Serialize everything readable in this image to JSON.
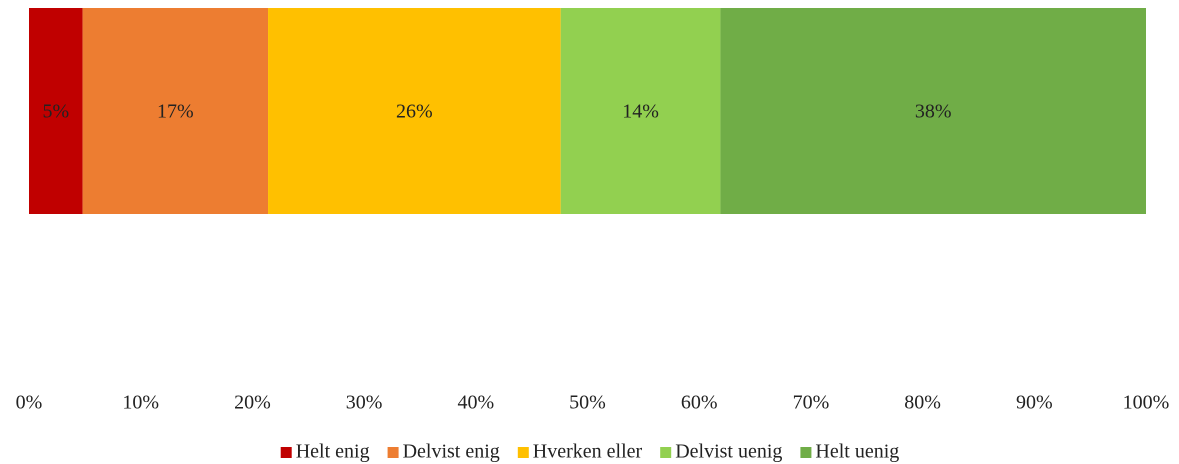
{
  "chart_data": {
    "type": "bar",
    "orientation": "horizontal",
    "stacked": true,
    "categories": [
      null
    ],
    "series": [
      {
        "name": "Helt enig",
        "color": "#c00000",
        "values": [
          4.8
        ],
        "value_labels": [
          "5%"
        ]
      },
      {
        "name": "Delvist enig",
        "color": "#ed7d31",
        "values": [
          16.6
        ],
        "value_labels": [
          "17%"
        ]
      },
      {
        "name": "Hverken eller",
        "color": "#ffc000",
        "values": [
          26.2
        ],
        "value_labels": [
          "26%"
        ]
      },
      {
        "name": "Delvist uenig",
        "color": "#92d050",
        "values": [
          14.3
        ],
        "value_labels": [
          "14%"
        ]
      },
      {
        "name": "Helt uenig",
        "color": "#70ad47",
        "values": [
          38.1
        ],
        "value_labels": [
          "38%"
        ]
      }
    ],
    "xlim": [
      0,
      100
    ],
    "xticks": [
      {
        "value": 0,
        "label": "0%"
      },
      {
        "value": 10,
        "label": "10%"
      },
      {
        "value": 20,
        "label": "20%"
      },
      {
        "value": 30,
        "label": "30%"
      },
      {
        "value": 40,
        "label": "40%"
      },
      {
        "value": 50,
        "label": "50%"
      },
      {
        "value": 60,
        "label": "60%"
      },
      {
        "value": 70,
        "label": "70%"
      },
      {
        "value": 80,
        "label": "80%"
      },
      {
        "value": 90,
        "label": "90%"
      },
      {
        "value": 100,
        "label": "100%"
      }
    ],
    "grid": false,
    "legend": "bottom"
  }
}
